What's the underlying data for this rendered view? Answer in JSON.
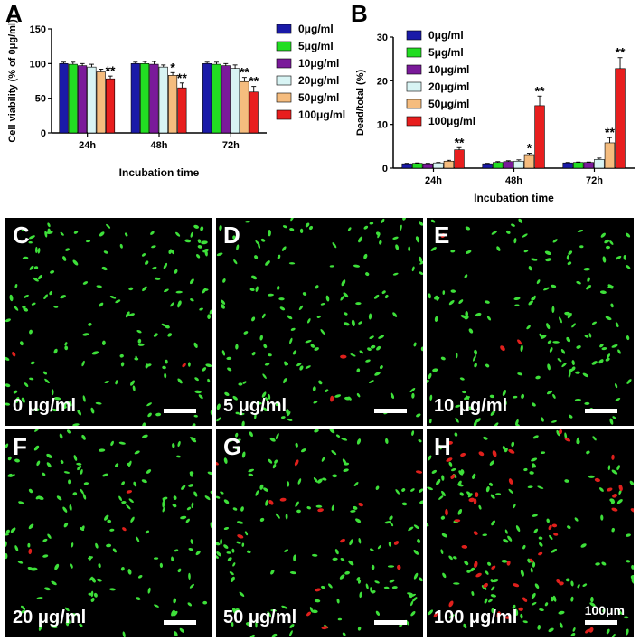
{
  "chart_data": [
    {
      "panel": "A",
      "type": "bar",
      "xlabel": "Incubation time",
      "ylabel": "Cell viability (% of 0μg/ml)",
      "ylim": [
        0,
        150
      ],
      "yticks": [
        0,
        50,
        100,
        150
      ],
      "categories": [
        "24h",
        "48h",
        "72h"
      ],
      "legend_position": "right",
      "series": [
        {
          "name": "0μg/ml",
          "color": "#1a1aa8",
          "values": [
            100,
            100,
            100
          ],
          "errors": [
            2,
            2,
            2
          ],
          "sig": [
            "",
            "",
            ""
          ]
        },
        {
          "name": "5μg/ml",
          "color": "#22dd22",
          "values": [
            99,
            100,
            99
          ],
          "errors": [
            3,
            3,
            3
          ],
          "sig": [
            "",
            "",
            ""
          ]
        },
        {
          "name": "10μg/ml",
          "color": "#7a1a9a",
          "values": [
            97,
            99,
            97
          ],
          "errors": [
            3,
            4,
            3
          ],
          "sig": [
            "",
            "",
            ""
          ]
        },
        {
          "name": "20μg/ml",
          "color": "#d8f4f4",
          "values": [
            95,
            95,
            93
          ],
          "errors": [
            4,
            3,
            5
          ],
          "sig": [
            "",
            "",
            ""
          ]
        },
        {
          "name": "50μg/ml",
          "color": "#f5bc7e",
          "values": [
            88,
            83,
            74
          ],
          "errors": [
            4,
            4,
            6
          ],
          "sig": [
            "",
            "*",
            "**"
          ]
        },
        {
          "name": "100μg/ml",
          "color": "#e81e1e",
          "values": [
            78,
            65,
            59
          ],
          "errors": [
            4,
            7,
            8
          ],
          "sig": [
            "**",
            "**",
            "**"
          ]
        }
      ]
    },
    {
      "panel": "B",
      "type": "bar",
      "xlabel": "Incubation time",
      "ylabel": "Dead/total (%)",
      "ylim": [
        0,
        30
      ],
      "yticks": [
        0,
        10,
        20,
        30
      ],
      "categories": [
        "24h",
        "48h",
        "72h"
      ],
      "legend_position": "top-left",
      "series": [
        {
          "name": "0μg/ml",
          "color": "#1a1aa8",
          "values": [
            1.0,
            1.0,
            1.2
          ],
          "errors": [
            0.1,
            0.1,
            0.1
          ],
          "sig": [
            "",
            "",
            ""
          ]
        },
        {
          "name": "5μg/ml",
          "color": "#22dd22",
          "values": [
            1.1,
            1.3,
            1.3
          ],
          "errors": [
            0.1,
            0.2,
            0.1
          ],
          "sig": [
            "",
            "",
            ""
          ]
        },
        {
          "name": "10μg/ml",
          "color": "#7a1a9a",
          "values": [
            1.0,
            1.5,
            1.3
          ],
          "errors": [
            0.1,
            0.2,
            0.1
          ],
          "sig": [
            "",
            "",
            ""
          ]
        },
        {
          "name": "20μg/ml",
          "color": "#d8f4f4",
          "values": [
            1.2,
            1.6,
            2.0
          ],
          "errors": [
            0.1,
            0.3,
            0.3
          ],
          "sig": [
            "",
            "",
            ""
          ]
        },
        {
          "name": "50μg/ml",
          "color": "#f5bc7e",
          "values": [
            1.6,
            3.1,
            5.8
          ],
          "errors": [
            0.2,
            0.3,
            1.2
          ],
          "sig": [
            "",
            "*",
            "**"
          ]
        },
        {
          "name": "100μg/ml",
          "color": "#e81e1e",
          "values": [
            4.2,
            14.3,
            22.8
          ],
          "errors": [
            0.5,
            2.2,
            2.5
          ],
          "sig": [
            "**",
            "**",
            "**"
          ]
        }
      ]
    }
  ],
  "panels": [
    {
      "letter": "C",
      "label": "0 μg/ml",
      "red": 2
    },
    {
      "letter": "D",
      "label": "5 μg/ml",
      "red": 2
    },
    {
      "letter": "E",
      "label": "10 μg/ml",
      "red": 3
    },
    {
      "letter": "F",
      "label": "20 μg/ml",
      "red": 3
    },
    {
      "letter": "G",
      "label": "50 μg/ml",
      "red": 14
    },
    {
      "letter": "H",
      "label": "100 μg/ml",
      "red": 45
    }
  ],
  "scale_bar_label": "100μm",
  "colors": {
    "live_cell": "#3ee03a",
    "dead_cell": "#e0201c",
    "tile_background": "#000000"
  }
}
